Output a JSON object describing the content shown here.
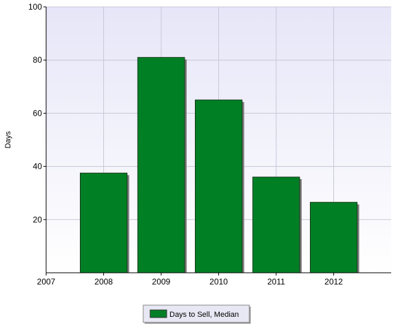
{
  "chart_data": {
    "type": "bar",
    "y_label": "Days",
    "x": [
      2008,
      2009,
      2010,
      2011,
      2012
    ],
    "series": [
      {
        "name": "Days to Sell, Median",
        "color": "#007f25",
        "values": [
          37.5,
          81,
          65,
          36,
          26.5
        ]
      }
    ],
    "xlim": [
      2007,
      2013
    ],
    "xticks": [
      2007,
      2008,
      2009,
      2010,
      2011,
      2012
    ],
    "ylim": [
      0,
      100
    ],
    "yticks": [
      20,
      40,
      60,
      80,
      100
    ],
    "grid": true
  }
}
